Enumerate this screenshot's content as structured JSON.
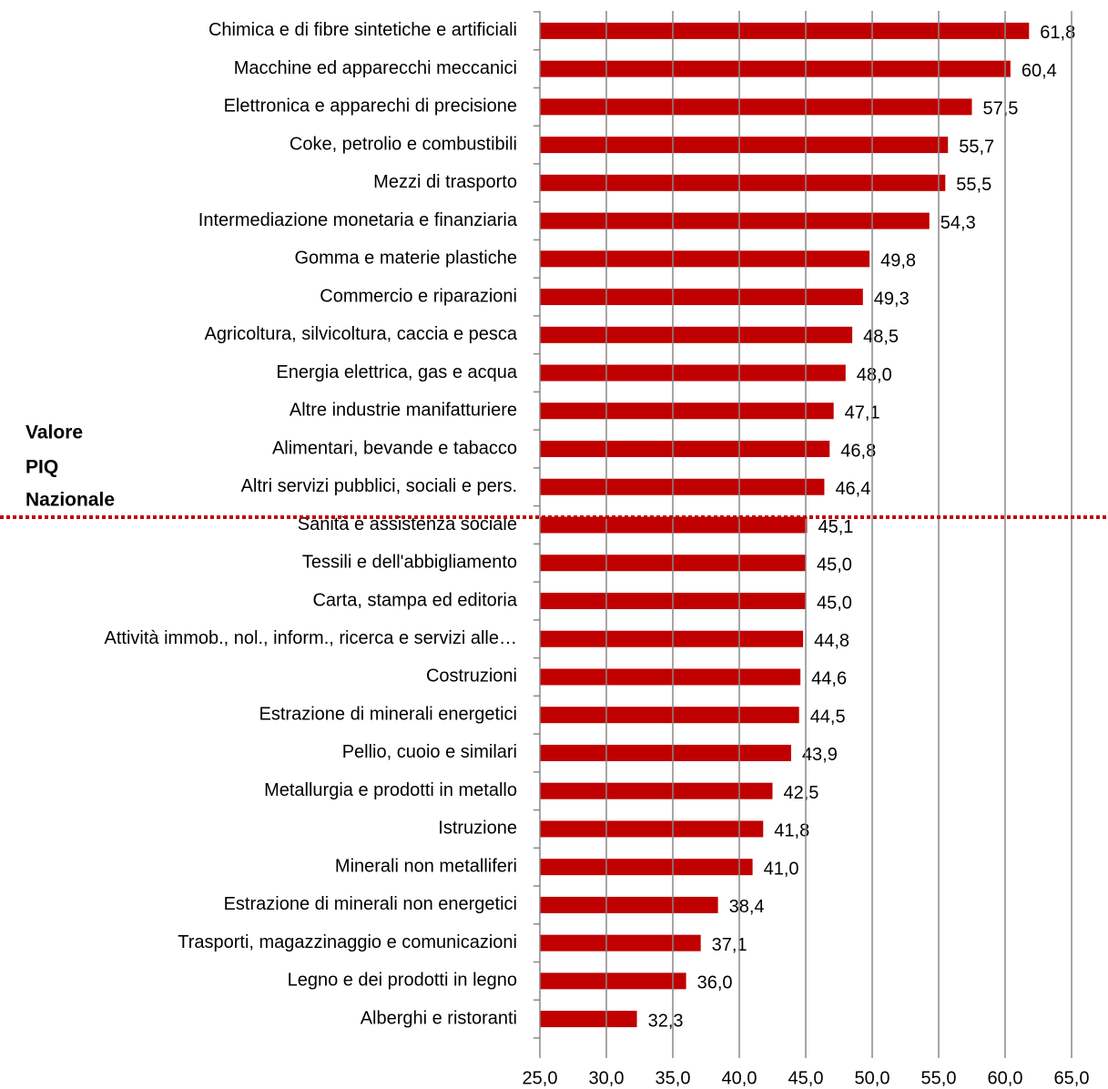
{
  "chart_data": {
    "type": "bar",
    "orientation": "horizontal",
    "categories": [
      "Chimica e di fibre sintetiche e artificiali",
      "Macchine ed apparecchi meccanici",
      "Elettronica e apparechi di precisione",
      "Coke, petrolio e combustibili",
      "Mezzi di trasporto",
      "Intermediazione monetaria e finanziaria",
      "Gomma e materie plastiche",
      "Commercio e riparazioni",
      "Agricoltura, silvicoltura, caccia e pesca",
      "Energia elettrica, gas e acqua",
      "Altre industrie manifatturiere",
      "Alimentari, bevande e tabacco",
      "Altri servizi pubblici, sociali e pers.",
      "Sanità e assistenza sociale",
      "Tessili e dell'abbigliamento",
      "Carta, stampa ed editoria",
      "Attività immob., nol., inform., ricerca e servizi alle…",
      "Costruzioni",
      "Estrazione di minerali energetici",
      "Pellio, cuoio e similari",
      "Metallurgia e prodotti in metallo",
      "Istruzione",
      "Minerali non metalliferi",
      "Estrazione di  minerali non energetici",
      "Trasporti, magazzinaggio e comunicazioni",
      "Legno e dei prodotti in legno",
      "Alberghi e ristoranti"
    ],
    "values": [
      61.8,
      60.4,
      57.5,
      55.7,
      55.5,
      54.3,
      49.8,
      49.3,
      48.5,
      48.0,
      47.1,
      46.8,
      46.4,
      45.1,
      45.0,
      45.0,
      44.8,
      44.6,
      44.5,
      43.9,
      42.5,
      41.8,
      41.0,
      38.4,
      37.1,
      36.0,
      32.3
    ],
    "value_labels": [
      "61,8",
      "60,4",
      "57,5",
      "55,7",
      "55,5",
      "54,3",
      "49,8",
      "49,3",
      "48,5",
      "48,0",
      "47,1",
      "46,8",
      "46,4",
      "45,1",
      "45,0",
      "45,0",
      "44,8",
      "44,6",
      "44,5",
      "43,9",
      "42,5",
      "41,8",
      "41,0",
      "38,4",
      "37,1",
      "36,0",
      "32,3"
    ],
    "color": "#c00000",
    "xlim": [
      25,
      65
    ],
    "xticks": [
      {
        "value": 25,
        "label": "25,0"
      },
      {
        "value": 30,
        "label": "30,0"
      },
      {
        "value": 35,
        "label": "35,0"
      },
      {
        "value": 40,
        "label": "40,0"
      },
      {
        "value": 45,
        "label": "45,0"
      },
      {
        "value": 50,
        "label": "50,0"
      },
      {
        "value": 55,
        "label": "55,0"
      },
      {
        "value": 60,
        "label": "60,0"
      },
      {
        "value": 65,
        "label": "65,0"
      }
    ],
    "grid": true,
    "annotation": [
      "Valore",
      "PIQ",
      "Nazionale"
    ]
  }
}
